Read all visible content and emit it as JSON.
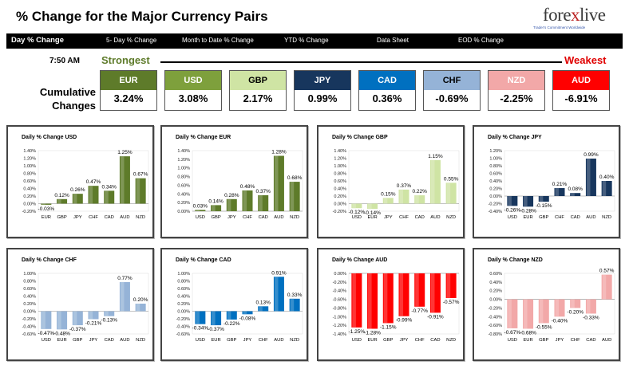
{
  "header": {
    "title": "% Change for the Major Currency Pairs",
    "logo_text": "forexlive",
    "logo_tagline": "Trader's Commitment Worldwide"
  },
  "nav": {
    "items": [
      "Day % Change",
      "5- Day % Change",
      "Month to Date % Change",
      "YTD % Change",
      "Data Sheet",
      "EOD % Change"
    ]
  },
  "summary": {
    "time": "7:50 AM",
    "strongest_label": "Strongest",
    "weakest_label": "Weakest",
    "cumulative_label": "Cumulative Changes",
    "currencies": [
      {
        "code": "EUR",
        "value": "3.24%",
        "color": "#5e7b2a",
        "text_color": "#ffffff"
      },
      {
        "code": "USD",
        "value": "3.08%",
        "color": "#7ea03c",
        "text_color": "#ffffff"
      },
      {
        "code": "GBP",
        "value": "2.17%",
        "color": "#cfe4a4",
        "text_color": "#000000"
      },
      {
        "code": "JPY",
        "value": "0.99%",
        "color": "#17365d",
        "text_color": "#ffffff"
      },
      {
        "code": "CAD",
        "value": "0.36%",
        "color": "#0070c0",
        "text_color": "#ffffff"
      },
      {
        "code": "CHF",
        "value": "-0.69%",
        "color": "#95b3d7",
        "text_color": "#000000"
      },
      {
        "code": "NZD",
        "value": "-2.25%",
        "color": "#f2a8a8",
        "text_color": "#ffffff"
      },
      {
        "code": "AUD",
        "value": "-6.91%",
        "color": "#ff0000",
        "text_color": "#ffffff"
      }
    ]
  },
  "chart_data": [
    {
      "type": "bar",
      "title": "Daily % Change USD",
      "color": "#5e7b2a",
      "categories": [
        "EUR",
        "GBP",
        "JPY",
        "CHF",
        "CAD",
        "AUD",
        "NZD"
      ],
      "values": [
        -0.03,
        0.12,
        0.26,
        0.47,
        0.34,
        1.25,
        0.67
      ],
      "labels": [
        "-0.03%",
        "0.12%",
        "0.26%",
        "0.47%",
        "0.34%",
        "1.25%",
        "0.67%"
      ],
      "ylim": [
        -0.2,
        1.4
      ],
      "ticks": [
        "-0.20%",
        "0.00%",
        "0.20%",
        "0.40%",
        "0.60%",
        "0.80%",
        "1.00%",
        "1.20%",
        "1.40%"
      ]
    },
    {
      "type": "bar",
      "title": "Daily % Change EUR",
      "color": "#5e7b2a",
      "categories": [
        "USD",
        "GBP",
        "JPY",
        "CHF",
        "CAD",
        "AUD",
        "NZD"
      ],
      "values": [
        0.03,
        0.14,
        0.28,
        0.48,
        0.37,
        1.28,
        0.68
      ],
      "labels": [
        "0.03%",
        "0.14%",
        "0.28%",
        "0.48%",
        "0.37%",
        "1.28%",
        "0.68%"
      ],
      "ylim": [
        0,
        1.4
      ],
      "ticks": [
        "0.00%",
        "0.20%",
        "0.40%",
        "0.60%",
        "0.80%",
        "1.00%",
        "1.20%",
        "1.40%"
      ]
    },
    {
      "type": "bar",
      "title": "Daily % Change GBP",
      "color": "#cfe4a4",
      "categories": [
        "USD",
        "EUR",
        "JPY",
        "CHF",
        "CAD",
        "AUD",
        "NZD"
      ],
      "values": [
        -0.12,
        -0.14,
        0.15,
        0.37,
        0.22,
        1.15,
        0.55
      ],
      "labels": [
        "-0.12%",
        "-0.14%",
        "0.15%",
        "0.37%",
        "0.22%",
        "1.15%",
        "0.55%"
      ],
      "ylim": [
        -0.2,
        1.4
      ],
      "ticks": [
        "-0.20%",
        "0.00%",
        "0.20%",
        "0.40%",
        "0.60%",
        "0.80%",
        "1.00%",
        "1.20%",
        "1.40%"
      ]
    },
    {
      "type": "bar",
      "title": "Daily % Change JPY",
      "color": "#17365d",
      "categories": [
        "USD",
        "EUR",
        "GBP",
        "CHF",
        "CAD",
        "AUD",
        "NZD"
      ],
      "values": [
        -0.26,
        -0.28,
        -0.15,
        0.21,
        0.08,
        0.99,
        0.4
      ],
      "labels": [
        "-0.26%",
        "-0.28%",
        "-0.15%",
        "0.21%",
        "0.08%",
        "0.99%",
        "0.40%"
      ],
      "ylim": [
        -0.4,
        1.2
      ],
      "ticks": [
        "-0.40%",
        "-0.20%",
        "0.00%",
        "0.20%",
        "0.40%",
        "0.60%",
        "0.80%",
        "1.00%",
        "1.20%"
      ]
    },
    {
      "type": "bar",
      "title": "Daily % Change CHF",
      "color": "#95b3d7",
      "categories": [
        "USD",
        "EUR",
        "GBP",
        "JPY",
        "CAD",
        "AUD",
        "NZD"
      ],
      "values": [
        -0.47,
        -0.48,
        -0.37,
        -0.21,
        -0.13,
        0.77,
        0.2
      ],
      "labels": [
        "-0.47%",
        "-0.48%",
        "-0.37%",
        "-0.21%",
        "-0.13%",
        "0.77%",
        "0.20%"
      ],
      "ylim": [
        -0.6,
        1.0
      ],
      "ticks": [
        "-0.60%",
        "-0.40%",
        "-0.20%",
        "0.00%",
        "0.20%",
        "0.40%",
        "0.60%",
        "0.80%",
        "1.00%"
      ]
    },
    {
      "type": "bar",
      "title": "Daily % Change CAD",
      "color": "#0070c0",
      "categories": [
        "USD",
        "EUR",
        "GBP",
        "JPY",
        "CHF",
        "AUD",
        "NZD"
      ],
      "values": [
        -0.34,
        -0.37,
        -0.22,
        -0.08,
        0.13,
        0.91,
        0.33
      ],
      "labels": [
        "-0.34%",
        "-0.37%",
        "-0.22%",
        "-0.08%",
        "0.13%",
        "0.91%",
        "0.33%"
      ],
      "ylim": [
        -0.6,
        1.0
      ],
      "ticks": [
        "-0.60%",
        "-0.40%",
        "-0.20%",
        "0.00%",
        "0.20%",
        "0.40%",
        "0.60%",
        "0.80%",
        "1.00%"
      ]
    },
    {
      "type": "bar",
      "title": "Daily % Change AUD",
      "color": "#ff0000",
      "categories": [
        "USD",
        "EUR",
        "GBP",
        "JPY",
        "CHF",
        "CAD",
        "NZD"
      ],
      "values": [
        -1.25,
        -1.28,
        -1.15,
        -0.99,
        -0.77,
        -0.91,
        -0.57
      ],
      "labels": [
        "-1.25%",
        "-1.28%",
        "-1.15%",
        "-0.99%",
        "-0.77%",
        "-0.91%",
        "-0.57%"
      ],
      "ylim": [
        -1.4,
        0.0
      ],
      "ticks": [
        "-1.40%",
        "-1.20%",
        "-1.00%",
        "-0.80%",
        "-0.60%",
        "-0.40%",
        "-0.20%",
        "0.00%"
      ]
    },
    {
      "type": "bar",
      "title": "Daily % Change NZD",
      "color": "#f2a8a8",
      "categories": [
        "USD",
        "EUR",
        "GBP",
        "JPY",
        "CHF",
        "CAD",
        "AUD"
      ],
      "values": [
        -0.67,
        -0.68,
        -0.55,
        -0.4,
        -0.2,
        -0.33,
        0.57
      ],
      "labels": [
        "-0.67%",
        "-0.68%",
        "-0.55%",
        "-0.40%",
        "-0.20%",
        "-0.33%",
        "0.57%"
      ],
      "ylim": [
        -0.8,
        0.6
      ],
      "ticks": [
        "-0.80%",
        "-0.60%",
        "-0.40%",
        "-0.20%",
        "0.00%",
        "0.20%",
        "0.40%",
        "0.60%"
      ]
    }
  ]
}
